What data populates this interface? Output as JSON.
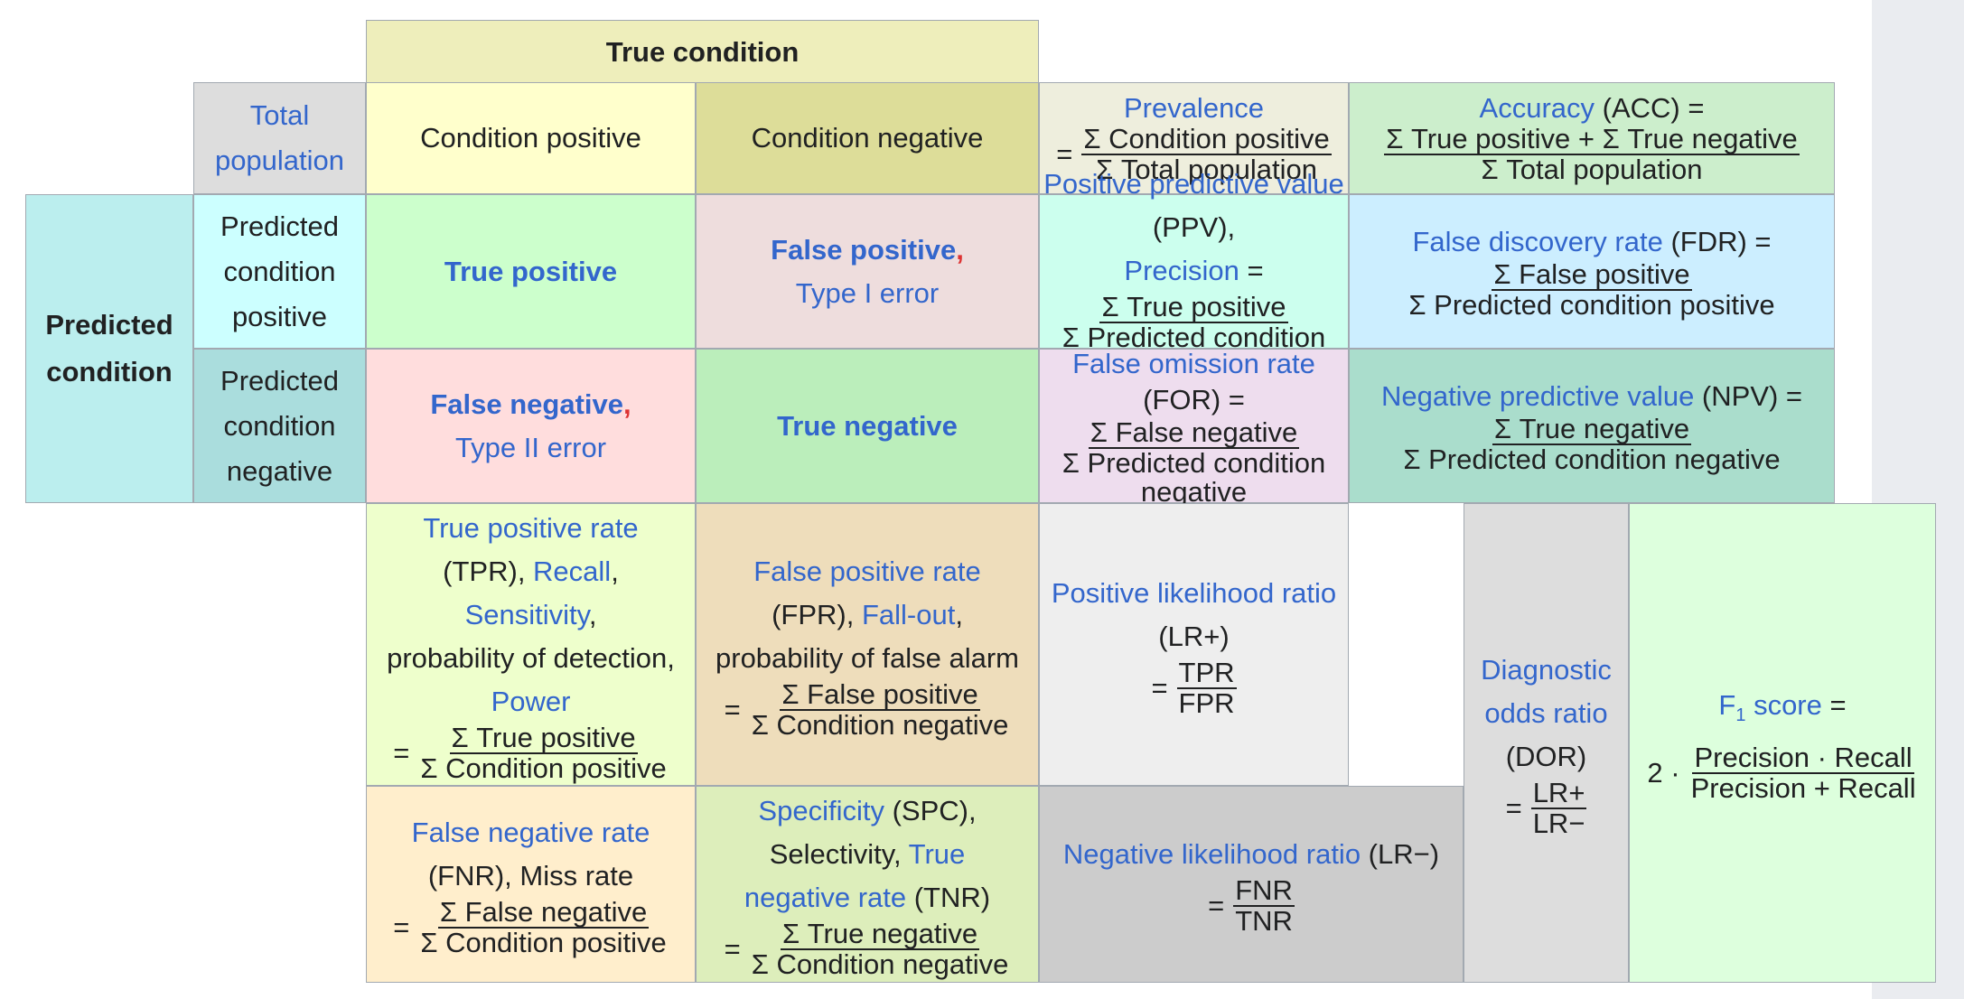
{
  "header": {
    "true_condition": "True condition"
  },
  "row_header": {
    "predicted_condition": "Predicted condition"
  },
  "total_population": "Total population",
  "columns": {
    "condition_positive": "Condition positive",
    "condition_negative": "Condition negative"
  },
  "rows": {
    "predicted_positive": [
      "Predicted",
      "condition",
      "positive"
    ],
    "predicted_negative": [
      "Predicted",
      "condition",
      "negative"
    ]
  },
  "cells": {
    "true_positive": "True positive",
    "false_positive": "False positive",
    "type1": "Type I error",
    "false_negative": "False negative",
    "type2": "Type II error",
    "true_negative": "True negative",
    "comma": ","
  },
  "prevalence": {
    "label": "Prevalence",
    "eq": "=",
    "num": "Σ Condition positive",
    "den": "Σ Total population"
  },
  "accuracy": {
    "link": "Accuracy",
    "abbr": " (ACC) =",
    "num": "Σ True positive + Σ True negative",
    "den": "Σ Total population"
  },
  "ppv": {
    "link": "Positive predictive value",
    "abbr": " (PPV),",
    "link2": "Precision",
    "eq": " =",
    "num": "Σ True positive",
    "den": "Σ Predicted condition positive"
  },
  "fdr": {
    "link": "False discovery rate",
    "abbr": " (FDR) =",
    "num": "Σ False positive",
    "den": "Σ Predicted condition positive"
  },
  "for": {
    "link": "False omission rate",
    "abbr": " (FOR) =",
    "num": "Σ False negative",
    "den": "Σ Predicted condition negative"
  },
  "npv": {
    "link": "Negative predictive value",
    "abbr": " (NPV) =",
    "num": "Σ True negative",
    "den": "Σ Predicted condition negative"
  },
  "tpr": {
    "link": "True positive rate",
    "abbr": "(TPR), ",
    "link2": "Recall",
    "comma": ",",
    "link3": "Sensitivity",
    "comma2": ",",
    "text": "probability of detection,",
    "link4": "Power",
    "eq": "=",
    "num": "Σ True positive",
    "den": "Σ Condition positive"
  },
  "fpr": {
    "link": "False positive rate",
    "abbr": "(FPR), ",
    "link2": "Fall-out",
    "comma": ",",
    "text": "probability of false alarm",
    "eq": "=",
    "num": "Σ False positive",
    "den": "Σ Condition negative"
  },
  "fnr": {
    "link": "False negative rate",
    "abbr": "(FNR), Miss rate",
    "eq": "=",
    "num": "Σ False negative",
    "den": "Σ Condition positive"
  },
  "spc": {
    "link": "Specificity",
    "abbr": " (SPC),",
    "text": "Selectivity, ",
    "link2": "True",
    "link3": "negative rate",
    "abbr2": " (TNR)",
    "eq": "=",
    "num": "Σ True negative",
    "den": "Σ Condition negative"
  },
  "lrp": {
    "link": "Positive likelihood ratio",
    "abbr": " (LR+)",
    "eq": "=",
    "num": "TPR",
    "den": "FPR"
  },
  "lrn": {
    "link": "Negative likelihood ratio",
    "abbr": " (LR−)",
    "eq": "=",
    "num": "FNR",
    "den": "TNR"
  },
  "dor": {
    "link1": "Diagnostic",
    "link2": "odds ratio",
    "abbr": "(DOR)",
    "eq": "=",
    "num": "LR+",
    "den": "LR−"
  },
  "f1": {
    "link": "F",
    "sub": "1",
    "link_tail": " score",
    "eq": " =",
    "pre": "2 ·",
    "num": "Precision · Recall",
    "den": "Precision + Recall"
  },
  "colors": {
    "link": "#3366cc",
    "red": "#dd3333",
    "border": "#a2a9b1",
    "true_condition": "#eeeebb",
    "total_population": "#dddddd",
    "condition_positive": "#ffffcc",
    "condition_negative": "#dddd99",
    "predicted_condition": "#bbeeee",
    "predicted_positive": "#ccffff",
    "predicted_negative": "#aadddd",
    "true_positive": "#ccffcc",
    "false_positive": "#eedddd",
    "false_negative": "#ffdddd",
    "true_negative": "#bbeebb",
    "prevalence": "#eeeedd",
    "accuracy": "#cceecc",
    "ppv": "#ccffee",
    "fdr": "#cceeff",
    "for": "#eeddee",
    "npv": "#aaddcc",
    "tpr": "#eeffcc",
    "fpr": "#eeddbb",
    "fnr": "#ffeecc",
    "spc": "#ddeebb",
    "lrp": "#eeeeee",
    "lrn": "#cccccc",
    "dor": "#dddddd",
    "f1": "#ddffdd"
  }
}
